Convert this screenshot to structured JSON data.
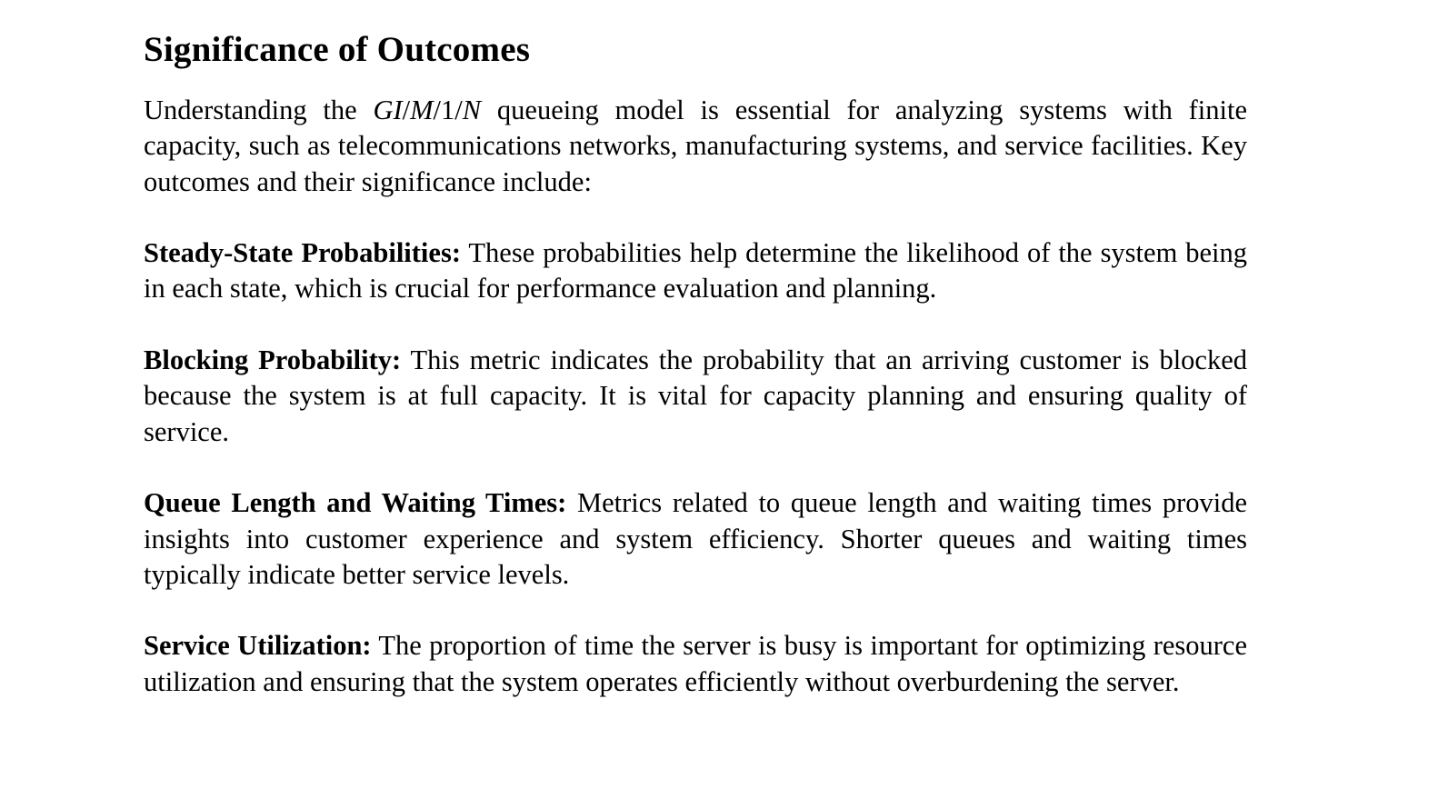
{
  "section": {
    "title": "Significance of Outcomes"
  },
  "intro": {
    "before_model": "Understanding the",
    "model_parts": [
      "GI",
      "/",
      "M",
      "/",
      "1",
      "/",
      "N"
    ],
    "after_model": "queueing model is essential for analyzing systems with finite capacity, such as telecommunications networks, manufacturing systems, and service facilities. Key outcomes and their significance include:"
  },
  "outcomes": [
    {
      "term": "Steady-State Probabilities:",
      "description": "These probabilities help determine the likelihood of the system being in each state, which is crucial for performance evaluation and planning."
    },
    {
      "term": "Blocking Probability:",
      "description": "This metric indicates the probability that an arriving customer is blocked because the system is at full capacity. It is vital for capacity planning and ensuring quality of service."
    },
    {
      "term": "Queue Length and Waiting Times:",
      "description": "Metrics related to queue length and waiting times provide insights into customer experience and system efficiency. Shorter queues and waiting times typically indicate better service levels."
    },
    {
      "term": "Service Utilization:",
      "description": "The proportion of time the server is busy is important for optimizing resource utilization and ensuring that the system operates efficiently without overburdening the server."
    }
  ]
}
